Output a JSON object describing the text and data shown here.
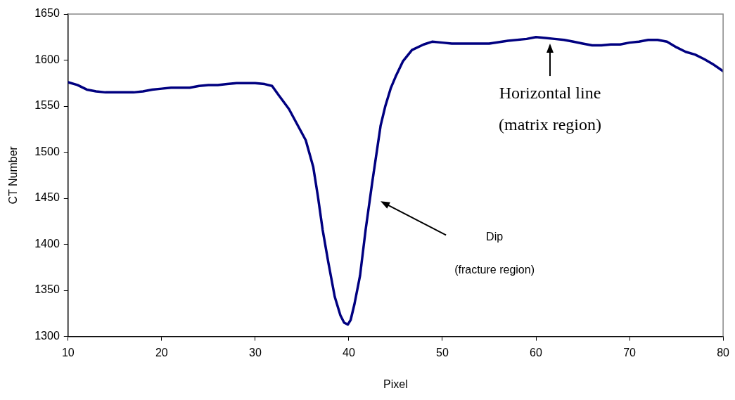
{
  "chart_data": {
    "type": "line",
    "xlabel": "Pixel",
    "ylabel": "CT Number",
    "color": "#000080",
    "marker": "none",
    "line_style": "solid",
    "grid": false,
    "legend": false,
    "x": [
      10,
      11,
      12,
      13,
      14,
      15,
      16,
      17,
      18,
      19,
      20,
      21,
      22,
      23,
      24,
      25,
      26,
      27,
      28,
      29,
      30,
      31,
      31.8,
      32.5,
      33.6,
      34.5,
      35.4,
      36.2,
      36.7,
      37.2,
      37.8,
      38.5,
      39.1,
      39.5,
      39.9,
      40.2,
      40.6,
      41.2,
      41.8,
      42.5,
      43.4,
      43.9,
      44.5,
      45,
      45.8,
      46.75,
      48,
      48.9,
      50,
      51,
      53,
      55,
      57,
      59,
      60,
      61,
      62,
      63,
      64,
      65,
      66,
      66.5,
      67,
      68,
      69,
      70,
      71,
      72,
      73,
      74,
      75,
      76,
      77,
      78,
      79,
      80
    ],
    "values": [
      1576,
      1573,
      1568,
      1566,
      1565,
      1565,
      1565,
      1565,
      1566,
      1568,
      1569,
      1570,
      1570,
      1570,
      1572,
      1573,
      1573,
      1574,
      1575,
      1575,
      1575,
      1574,
      1572,
      1562,
      1547,
      1530,
      1513,
      1484,
      1452,
      1416,
      1381,
      1343,
      1323,
      1315,
      1313,
      1318,
      1335,
      1366,
      1416,
      1467,
      1529,
      1550,
      1570,
      1582,
      1599,
      1611,
      1617,
      1620,
      1619,
      1618,
      1618,
      1618,
      1621,
      1623,
      1625,
      1624,
      1623,
      1622,
      1620,
      1618,
      1616,
      1616,
      1616,
      1617,
      1617,
      1619,
      1620,
      1622,
      1622,
      1620,
      1614,
      1609,
      1606,
      1601,
      1595,
      1588
    ],
    "xlim": [
      10,
      80
    ],
    "xticks": [
      10,
      20,
      30,
      40,
      50,
      60,
      70,
      80
    ],
    "ylim": [
      1300,
      1650
    ],
    "yticks": [
      1300,
      1350,
      1400,
      1450,
      1500,
      1550,
      1600,
      1650
    ],
    "annotations": [
      {
        "text": "Horizontal line\n(matrix region)",
        "x": 61.5,
        "y": 1624
      },
      "Dip",
      "(fracture region)"
    ]
  }
}
